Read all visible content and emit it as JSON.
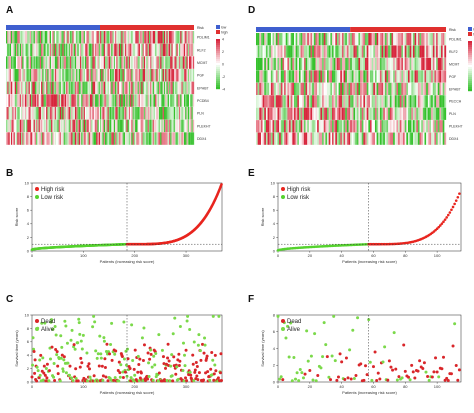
{
  "colors": {
    "high": "#e8251f",
    "low": "#55d22e",
    "dead": "#d9262a",
    "alive": "#7bd94a",
    "risk_bar_low": "#3f5fcf",
    "risk_bar_high": "#e0302f",
    "heat_high": "#d7263d",
    "heat_mid": "#ffffff",
    "heat_low": "#35c12c"
  },
  "panels": {
    "A": "A",
    "B": "B",
    "C": "C",
    "D": "D",
    "E": "E",
    "F": "F"
  },
  "chart_data": [
    {
      "panel": "A",
      "type": "heatmap",
      "title": "",
      "columns_note": "patients ordered by increasing risk score",
      "n_patients": 370,
      "cutoff_index": 185,
      "rows": [
        "PDLIM1",
        "RLF2",
        "MCM7",
        "PGF",
        "EPHB7",
        "PCDB4",
        "PLN",
        "PLEKH7",
        "DDX4"
      ],
      "annotation_label": "Risk",
      "legend_groups": [
        "low",
        "high"
      ],
      "scale_ticks": [
        "4",
        "2",
        "0",
        "-2",
        "-4"
      ],
      "seed": 7
    },
    {
      "panel": "B",
      "type": "scatter",
      "xlabel": "Patients (increasing risk score)",
      "ylabel": "Risk score",
      "xlim": [
        0,
        370
      ],
      "ylim": [
        0,
        10
      ],
      "xticks": [
        0,
        100,
        200,
        300
      ],
      "yticks": [
        0,
        2,
        4,
        6,
        8,
        10
      ],
      "cutoff_x": 185,
      "cutoff_y": 1.0,
      "series": [
        {
          "name": "High risk",
          "color_key": "high"
        },
        {
          "name": "Low risk",
          "color_key": "low"
        }
      ],
      "curve": {
        "n": 370,
        "min": 0.2,
        "cutoff": 1.0,
        "max": 10.0
      },
      "seed": 11
    },
    {
      "panel": "C",
      "type": "scatter",
      "xlabel": "Patients (increasing risk score)",
      "ylabel": "Survival time (years)",
      "xlim": [
        0,
        370
      ],
      "ylim": [
        0,
        10
      ],
      "xticks": [
        0,
        100,
        200,
        300
      ],
      "yticks": [
        0,
        2,
        4,
        6,
        8,
        10
      ],
      "cutoff_x": 185,
      "series": [
        {
          "name": "Dead",
          "color_key": "dead"
        },
        {
          "name": "Alive",
          "color_key": "alive"
        }
      ],
      "n": 370,
      "seed": 23
    },
    {
      "panel": "D",
      "type": "heatmap",
      "title": "",
      "columns_note": "patients ordered by increasing risk score",
      "n_patients": 115,
      "cutoff_index": 57,
      "rows": [
        "PDLIM1",
        "RLF2",
        "MCM7",
        "PGF",
        "EPHB7",
        "PECCH",
        "PLN",
        "PLEKH7",
        "DDX4"
      ],
      "annotation_label": "Risk",
      "legend_groups": [
        "low",
        "high"
      ],
      "scale_ticks": [
        "4",
        "2",
        "0",
        "-2",
        "-4"
      ],
      "seed": 19
    },
    {
      "panel": "E",
      "type": "scatter",
      "xlabel": "Patients (increasing risk score)",
      "ylabel": "Risk score",
      "xlim": [
        0,
        115
      ],
      "ylim": [
        0,
        10
      ],
      "xticks": [
        0,
        20,
        40,
        60,
        80,
        100
      ],
      "yticks": [
        0,
        2,
        4,
        6,
        8,
        10
      ],
      "cutoff_x": 57,
      "cutoff_y": 1.0,
      "series": [
        {
          "name": "High risk",
          "color_key": "high"
        },
        {
          "name": "Low risk",
          "color_key": "low"
        }
      ],
      "curve": {
        "n": 115,
        "min": 0.1,
        "cutoff": 1.0,
        "max": 9.0
      },
      "seed": 31
    },
    {
      "panel": "F",
      "type": "scatter",
      "xlabel": "Patients (increasing risk score)",
      "ylabel": "Survival time (years)",
      "xlim": [
        0,
        115
      ],
      "ylim": [
        0,
        8
      ],
      "xticks": [
        0,
        20,
        40,
        60,
        80,
        100
      ],
      "yticks": [
        0,
        2,
        4,
        6,
        8
      ],
      "cutoff_x": 57,
      "series": [
        {
          "name": "Dead",
          "color_key": "dead"
        },
        {
          "name": "Alive",
          "color_key": "alive"
        }
      ],
      "n": 115,
      "seed": 41
    }
  ]
}
